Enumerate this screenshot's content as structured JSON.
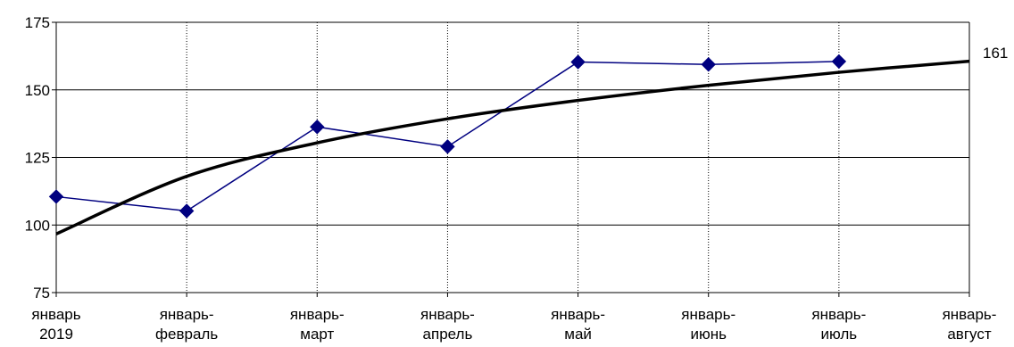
{
  "chart_data": {
    "type": "line",
    "categories": [
      [
        "январь",
        "2019"
      ],
      [
        "январь-",
        "февраль"
      ],
      [
        "январь-",
        "март"
      ],
      [
        "январь-",
        "апрель"
      ],
      [
        "январь-",
        "май"
      ],
      [
        "январь-",
        "июнь"
      ],
      [
        "январь-",
        "июль"
      ],
      [
        "январь-",
        "август"
      ]
    ],
    "series": [
      {
        "values": [
          110.5,
          105.2,
          136.3,
          129.0,
          160.3,
          159.4,
          160.5,
          null
        ],
        "color": "#000080",
        "marker": "diamond",
        "marker_color": "#000080"
      },
      {
        "type": "trend",
        "values": [
          96.7,
          118.0,
          130.4,
          139.3,
          146.1,
          151.7,
          156.5,
          160.6
        ],
        "color": "#000000"
      }
    ],
    "end_label": "161",
    "ylim": [
      75,
      175
    ],
    "yticks": [
      75,
      100,
      125,
      150,
      175
    ],
    "grid": {
      "horizontal": "solid",
      "vertical": "dotted"
    },
    "legend": "none"
  }
}
